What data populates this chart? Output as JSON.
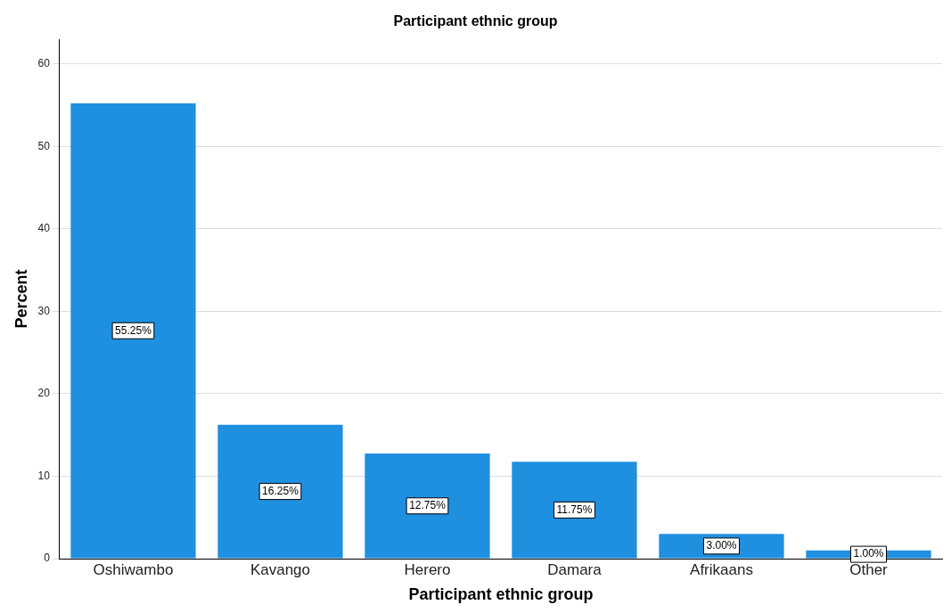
{
  "chart_data": {
    "type": "bar",
    "title": "Participant ethnic group",
    "xlabel": "Participant ethnic group",
    "ylabel": "Percent",
    "categories": [
      "Oshiwambo",
      "Kavango",
      "Herero",
      "Damara",
      "Afrikaans",
      "Other"
    ],
    "values": [
      55.25,
      16.25,
      12.75,
      11.75,
      3.0,
      1.0
    ],
    "value_labels": [
      "55.25%",
      "16.25%",
      "12.75%",
      "11.75%",
      "3.00%",
      "1.00%"
    ],
    "color": "#1f8fe0",
    "ylim": [
      0,
      63
    ],
    "yticks": [
      0,
      10,
      20,
      30,
      40,
      50,
      60
    ],
    "grid": "y",
    "legend": false
  }
}
